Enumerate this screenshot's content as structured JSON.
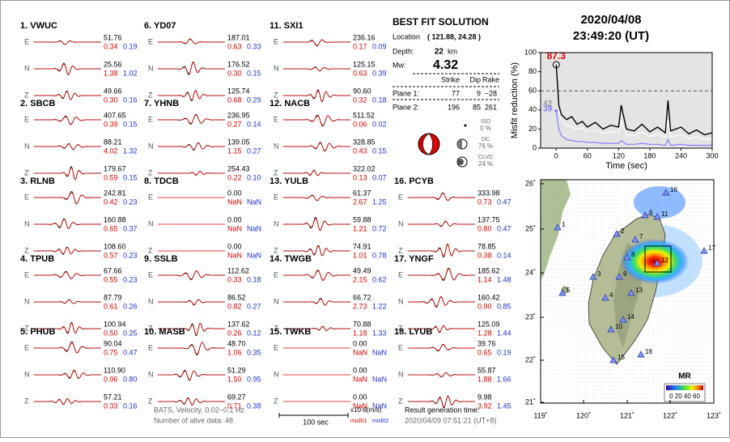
{
  "header": {
    "date": "2020/04/08",
    "time": "23:49:20  (UT)"
  },
  "stations": [
    {
      "label": "1.  VWUC",
      "components": [
        {
          "comp": "E",
          "amp": "51.76",
          "misfit1": "0.34",
          "misfit2": "0.19"
        },
        {
          "comp": "N",
          "amp": "25.56",
          "misfit1": "1.38",
          "misfit2": "1.02"
        },
        {
          "comp": "Z",
          "amp": "49.66",
          "misfit1": "0.30",
          "misfit2": "0.16"
        }
      ]
    },
    {
      "label": "2.  SBCB",
      "components": [
        {
          "comp": "E",
          "amp": "407.65",
          "misfit1": "0.39",
          "misfit2": "0.15"
        },
        {
          "comp": "N",
          "amp": "88.21",
          "misfit1": "4.02",
          "misfit2": "1.32"
        },
        {
          "comp": "Z",
          "amp": "179.67",
          "misfit1": "0.59",
          "misfit2": "0.15"
        }
      ]
    },
    {
      "label": "3.  RLNB",
      "components": [
        {
          "comp": "E",
          "amp": "242.81",
          "misfit1": "0.42",
          "misfit2": "0.23"
        },
        {
          "comp": "N",
          "amp": "160.88",
          "misfit1": "0.65",
          "misfit2": "0.37"
        },
        {
          "comp": "Z",
          "amp": "108.60",
          "misfit1": "0.57",
          "misfit2": "0.23"
        }
      ]
    },
    {
      "label": "4.  TPUB",
      "components": [
        {
          "comp": "E",
          "amp": "67.66",
          "misfit1": "0.55",
          "misfit2": "0.23"
        },
        {
          "comp": "N",
          "amp": "87.79",
          "misfit1": "0.61",
          "misfit2": "0.26"
        },
        {
          "comp": "Z",
          "amp": "100.94",
          "misfit1": "0.50",
          "misfit2": "0.25"
        }
      ]
    },
    {
      "label": "5.  PHUB",
      "components": [
        {
          "comp": "E",
          "amp": "90.04",
          "misfit1": "0.75",
          "misfit2": "0.47"
        },
        {
          "comp": "N",
          "amp": "110.90",
          "misfit1": "0.96",
          "misfit2": "0.80"
        },
        {
          "comp": "Z",
          "amp": "57.21",
          "misfit1": "0.33",
          "misfit2": "0.16"
        }
      ]
    },
    {
      "label": "6.  YD07",
      "components": [
        {
          "comp": "E",
          "amp": "187.01",
          "misfit1": "0.63",
          "misfit2": "0.33"
        },
        {
          "comp": "N",
          "amp": "176.52",
          "misfit1": "0.30",
          "misfit2": "0.15"
        },
        {
          "comp": "Z",
          "amp": "125.74",
          "misfit1": "0.68",
          "misfit2": "0.29"
        }
      ]
    },
    {
      "label": "7.  YHNB",
      "components": [
        {
          "comp": "E",
          "amp": "236.95",
          "misfit1": "0.27",
          "misfit2": "0.14"
        },
        {
          "comp": "N",
          "amp": "139.05",
          "misfit1": "1.15",
          "misfit2": "0.27"
        },
        {
          "comp": "Z",
          "amp": "254.43",
          "misfit1": "0.22",
          "misfit2": "0.10"
        }
      ]
    },
    {
      "label": "8.  TDCB",
      "components": [
        {
          "comp": "E",
          "amp": "0.00",
          "misfit1": "NaN",
          "misfit2": "NaN"
        },
        {
          "comp": "N",
          "amp": "0.00",
          "misfit1": "NaN",
          "misfit2": "NaN"
        },
        {
          "comp": "Z",
          "amp": "0.00",
          "misfit1": "NaN",
          "misfit2": "NaN"
        }
      ]
    },
    {
      "label": "9.  SSLB",
      "components": [
        {
          "comp": "E",
          "amp": "112.62",
          "misfit1": "0.33",
          "misfit2": "0.18"
        },
        {
          "comp": "N",
          "amp": "86.52",
          "misfit1": "0.82",
          "misfit2": "0.27"
        },
        {
          "comp": "Z",
          "amp": "137.62",
          "misfit1": "0.26",
          "misfit2": "0.12"
        }
      ]
    },
    {
      "label": "10.  MASB",
      "components": [
        {
          "comp": "E",
          "amp": "48.70",
          "misfit1": "1.06",
          "misfit2": "0.35"
        },
        {
          "comp": "N",
          "amp": "51.29",
          "misfit1": "1.50",
          "misfit2": "0.95"
        },
        {
          "comp": "Z",
          "amp": "69.27",
          "misfit1": "0.71",
          "misfit2": "0.38"
        }
      ]
    },
    {
      "label": "11.  SXI1",
      "components": [
        {
          "comp": "E",
          "amp": "236.16",
          "misfit1": "0.17",
          "misfit2": "0.09"
        },
        {
          "comp": "N",
          "amp": "125.15",
          "misfit1": "0.63",
          "misfit2": "0.39"
        },
        {
          "comp": "Z",
          "amp": "90.60",
          "misfit1": "0.32",
          "misfit2": "0.18"
        }
      ]
    },
    {
      "label": "12.  NACB",
      "components": [
        {
          "comp": "E",
          "amp": "511.52",
          "misfit1": "0.06",
          "misfit2": "0.02"
        },
        {
          "comp": "N",
          "amp": "328.85",
          "misfit1": "0.43",
          "misfit2": "0.15"
        },
        {
          "comp": "Z",
          "amp": "322.02",
          "misfit1": "0.13",
          "misfit2": "0.07"
        }
      ]
    },
    {
      "label": "13.  YULB",
      "components": [
        {
          "comp": "E",
          "amp": "61.37",
          "misfit1": "2.67",
          "misfit2": "1.25"
        },
        {
          "comp": "N",
          "amp": "59.88",
          "misfit1": "1.21",
          "misfit2": "0.72"
        },
        {
          "comp": "Z",
          "amp": "74.91",
          "misfit1": "1.01",
          "misfit2": "0.78"
        }
      ]
    },
    {
      "label": "14.  TWGB",
      "components": [
        {
          "comp": "E",
          "amp": "49.49",
          "misfit1": "2.15",
          "misfit2": "0.62"
        },
        {
          "comp": "N",
          "amp": "66.72",
          "misfit1": "2.73",
          "misfit2": "1.22"
        },
        {
          "comp": "Z",
          "amp": "70.88",
          "misfit1": "1.18",
          "misfit2": "1.33"
        }
      ]
    },
    {
      "label": "15.  TWKB",
      "components": [
        {
          "comp": "E",
          "amp": "0.00",
          "misfit1": "NaN",
          "misfit2": "NaN"
        },
        {
          "comp": "N",
          "amp": "0.00",
          "misfit1": "NaN",
          "misfit2": "NaN"
        },
        {
          "comp": "Z",
          "amp": "0.00",
          "misfit1": "NaN",
          "misfit2": "NaN"
        }
      ]
    },
    {
      "label": "16.  PCYB",
      "components": [
        {
          "comp": "E",
          "amp": "333.98",
          "misfit1": "0.73",
          "misfit2": "0.47"
        },
        {
          "comp": "N",
          "amp": "137.75",
          "misfit1": "0.80",
          "misfit2": "0.47"
        },
        {
          "comp": "Z",
          "amp": "78.85",
          "misfit1": "0.38",
          "misfit2": "0.14"
        }
      ]
    },
    {
      "label": "17.  YNGF",
      "components": [
        {
          "comp": "E",
          "amp": "185.62",
          "misfit1": "1.14",
          "misfit2": "1.48"
        },
        {
          "comp": "N",
          "amp": "160.42",
          "misfit1": "0.90",
          "misfit2": "0.85"
        },
        {
          "comp": "Z",
          "amp": "125.09",
          "misfit1": "1.28",
          "misfit2": "1.44"
        }
      ]
    },
    {
      "label": "18.  LYUB",
      "components": [
        {
          "comp": "E",
          "amp": "39.76",
          "misfit1": "0.65",
          "misfit2": "0.19"
        },
        {
          "comp": "N",
          "amp": "55.87",
          "misfit1": "1.88",
          "misfit2": "1.66"
        },
        {
          "comp": "Z",
          "amp": "9.98",
          "misfit1": "3.92",
          "misfit2": "1.45"
        }
      ]
    }
  ],
  "solution": {
    "title": "BEST FIT SOLUTION",
    "location_label": "Location",
    "location": "( 121.88, 24.28 )",
    "depth_label": "Depth:",
    "depth": "22",
    "depth_unit": "km",
    "mw_label": "Mw:",
    "mw": "4.32",
    "table": {
      "header": [
        "Strike",
        "Dip",
        "Rake"
      ],
      "rows": [
        {
          "label": "Plane 1:",
          "cells": [
            "77",
            "9",
            "−28"
          ]
        },
        {
          "label": "Plane 2:",
          "cells": [
            "196",
            "85",
            "261"
          ]
        }
      ]
    },
    "components": [
      {
        "name": "ISO",
        "percent": "0 %"
      },
      {
        "name": "DC",
        "percent": "76 %"
      },
      {
        "name": "CLVD",
        "percent": "24 %"
      }
    ]
  },
  "footer": {
    "filter": "BATS, Velocity, 0.02~0.1 Hz",
    "alive": "Number of alive data: 48",
    "scale": "100 sec",
    "unit": "x10-8(m/s)",
    "misfit1": "misfit1",
    "misfit2": "misfit2",
    "result_label": "Result generation time:",
    "result_time": "2020/04/09 07:51:21 (UT+8)"
  },
  "chart_data": {
    "type": "line",
    "xlabel": "Time (sec)",
    "ylabel": "Misfit reduction (%)",
    "x": [
      0,
      5,
      10,
      20,
      30,
      40,
      50,
      60,
      75,
      90,
      105,
      120,
      125,
      135,
      150,
      165,
      180,
      195,
      210,
      215,
      220,
      240,
      255,
      270,
      285,
      300
    ],
    "series": [
      {
        "color": "#000000",
        "values": [
          87.3,
          45,
          35,
          30,
          33,
          25,
          28,
          22,
          27,
          20,
          24,
          22,
          45,
          20,
          18,
          25,
          17,
          22,
          16,
          50,
          18,
          22,
          15,
          19,
          14,
          16
        ]
      },
      {
        "color": "#ffffff",
        "values": [
          42,
          38,
          30,
          24,
          22,
          20,
          21,
          17,
          19,
          15,
          17,
          16,
          28,
          14,
          13,
          17,
          12,
          15,
          11,
          30,
          12,
          14,
          10,
          12,
          9,
          10
        ]
      },
      {
        "color": "#8080ff",
        "values": [
          39,
          20,
          13,
          9,
          8,
          7,
          7,
          6,
          6,
          5,
          5,
          5,
          8,
          4,
          4,
          5,
          4,
          4,
          3,
          9,
          3,
          4,
          3,
          3,
          3,
          3
        ]
      }
    ],
    "xlim": [
      -30,
      300
    ],
    "ylim": [
      0,
      100
    ],
    "xticks": [
      0,
      60,
      120,
      180,
      240,
      300
    ],
    "yticks": [
      0,
      20,
      40,
      60,
      80,
      100
    ],
    "reference_line": 60
  },
  "map": {
    "xticks": [
      "119˚",
      "120˚",
      "121˚",
      "122˚",
      "123˚"
    ],
    "yticks": [
      "21˚",
      "22˚",
      "23˚",
      "24˚",
      "25˚",
      "26˚"
    ],
    "stations": [
      "1",
      "2",
      "3",
      "4",
      "5",
      "6",
      "7",
      "8",
      "9",
      "10",
      "11",
      "12",
      "13",
      "14",
      "15",
      "16",
      "17",
      "18"
    ],
    "colorbar_title": "MR",
    "colorbar_labels": "0 20 40 60"
  }
}
